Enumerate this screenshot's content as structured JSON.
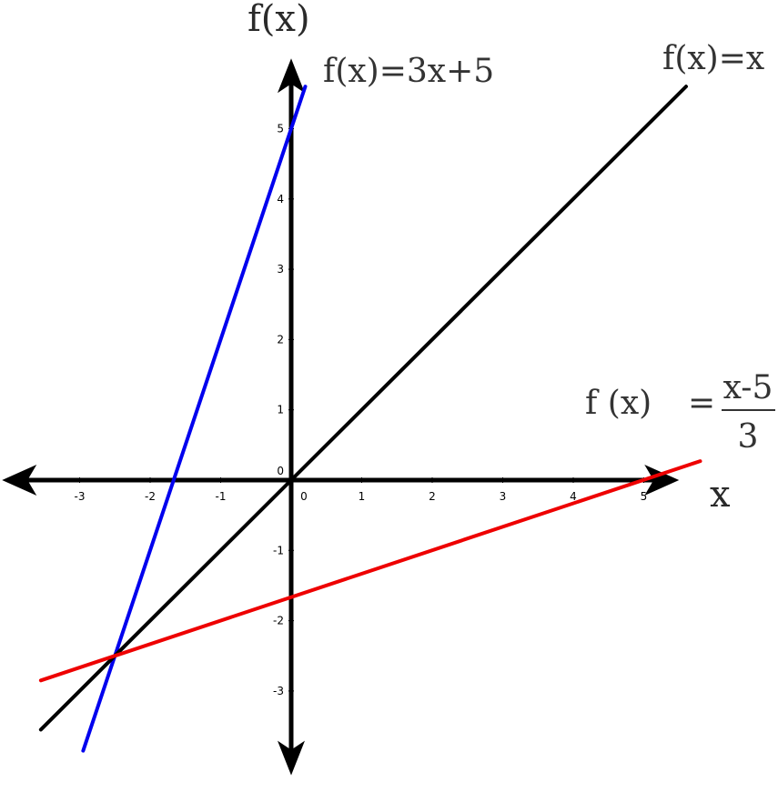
{
  "chart_data": {
    "type": "line",
    "title": "",
    "xlabel": "x",
    "ylabel": "f(x)",
    "xlim": [
      -4.1,
      5.5
    ],
    "ylim": [
      -4.2,
      6.0
    ],
    "grid": false,
    "x_ticks": [
      -3,
      -2,
      -1,
      0,
      1,
      2,
      3,
      4,
      5
    ],
    "y_ticks": [
      -3,
      -2,
      -1,
      1,
      2,
      3,
      4,
      5
    ],
    "origin_label": "0",
    "series": [
      {
        "name": "f(x)=3x+5",
        "color": "#0000ee",
        "x": [
          -2.95,
          0.2
        ],
        "y": [
          -3.85,
          5.6
        ]
      },
      {
        "name": "f(x)=x",
        "color": "#000000",
        "x": [
          -3.55,
          5.6
        ],
        "y": [
          -3.55,
          5.6
        ]
      },
      {
        "name": "f (x) = (x-5)/3",
        "color": "#ee0000",
        "x": [
          -3.55,
          5.8
        ],
        "y": [
          -2.85,
          0.27
        ]
      }
    ],
    "annotations": {
      "eq_blue": "f(x)=3x+5",
      "eq_black": "f(x)=x",
      "eq_red_lhs": "f (x)",
      "eq_red_equals": "=",
      "eq_red_num": "x-5",
      "eq_red_den": "3"
    }
  }
}
